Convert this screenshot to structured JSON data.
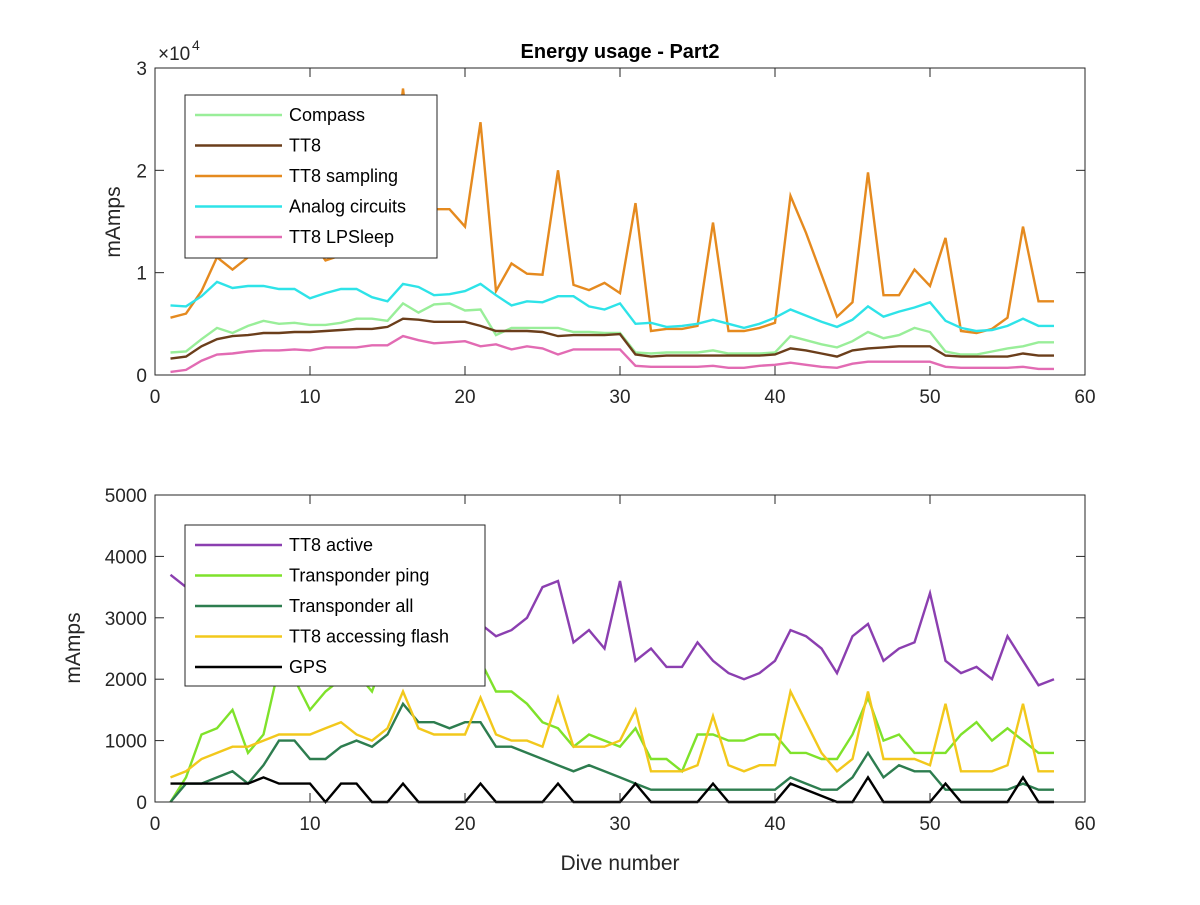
{
  "chart_data": [
    {
      "type": "line",
      "title": "Energy usage - Part2",
      "xlabel": "",
      "ylabel": "mAmps",
      "y_exponent_label": "×10",
      "y_exponent_power": "4",
      "y_scale_factor": 10000,
      "xlim": [
        0,
        60
      ],
      "ylim": [
        0,
        30000
      ],
      "xticks": [
        0,
        10,
        20,
        30,
        40,
        50,
        60
      ],
      "yticks": [
        0,
        10000,
        20000,
        30000
      ],
      "yticklabels": [
        "0",
        "1",
        "2",
        "3"
      ],
      "grid": false,
      "legend_position": "top-left",
      "x": [
        1,
        2,
        3,
        4,
        5,
        6,
        7,
        8,
        9,
        10,
        11,
        12,
        13,
        14,
        15,
        16,
        17,
        18,
        19,
        20,
        21,
        22,
        23,
        24,
        25,
        26,
        27,
        28,
        29,
        30,
        31,
        32,
        33,
        34,
        35,
        36,
        37,
        38,
        39,
        40,
        41,
        42,
        43,
        44,
        45,
        46,
        47,
        48,
        49,
        50,
        51,
        52,
        53,
        54,
        55,
        56,
        57,
        58
      ],
      "series": [
        {
          "name": "Compass",
          "color": "#99EE99",
          "values": [
            2200,
            2300,
            3500,
            4600,
            4100,
            4800,
            5300,
            5000,
            5100,
            4900,
            4900,
            5100,
            5500,
            5500,
            5300,
            7000,
            6100,
            6900,
            7000,
            6300,
            6400,
            3900,
            4600,
            4600,
            4600,
            4600,
            4200,
            4200,
            4100,
            4100,
            2200,
            2100,
            2200,
            2200,
            2200,
            2400,
            2100,
            2100,
            2100,
            2200,
            3800,
            3400,
            3000,
            2700,
            3300,
            4200,
            3600,
            3900,
            4600,
            4200,
            2300,
            2000,
            2000,
            2300,
            2600,
            2800,
            3200,
            3200
          ]
        },
        {
          "name": "TT8",
          "color": "#6B3E1B",
          "values": [
            1600,
            1800,
            2800,
            3500,
            3800,
            3900,
            4100,
            4100,
            4200,
            4200,
            4300,
            4400,
            4500,
            4500,
            4700,
            5500,
            5400,
            5200,
            5200,
            5200,
            4800,
            4300,
            4300,
            4300,
            4200,
            3800,
            3900,
            3900,
            3900,
            4000,
            2000,
            1800,
            1900,
            1900,
            1900,
            1900,
            1900,
            1900,
            1900,
            2000,
            2600,
            2400,
            2100,
            1800,
            2400,
            2600,
            2700,
            2800,
            2800,
            2800,
            1900,
            1800,
            1800,
            1800,
            1800,
            2100,
            1900,
            1900
          ]
        },
        {
          "name": "TT8 sampling",
          "color": "#E58A1F",
          "values": [
            5600,
            6000,
            8200,
            11500,
            10300,
            11500,
            12200,
            13500,
            14800,
            13300,
            11200,
            11700,
            12800,
            14000,
            14300,
            28000,
            14500,
            16200,
            16200,
            14500,
            24700,
            8200,
            10900,
            9900,
            9800,
            20000,
            8800,
            8300,
            9000,
            8000,
            16800,
            4300,
            4500,
            4500,
            4800,
            14900,
            4300,
            4300,
            4600,
            5100,
            17500,
            13900,
            9800,
            5700,
            7100,
            19800,
            7800,
            7800,
            10300,
            8700,
            13400,
            4300,
            4100,
            4500,
            5600,
            14500,
            7200,
            7200
          ]
        },
        {
          "name": "Analog circuits",
          "color": "#2EE3E8",
          "values": [
            6800,
            6700,
            7700,
            9100,
            8500,
            8700,
            8700,
            8400,
            8400,
            7500,
            8000,
            8400,
            8400,
            7600,
            7200,
            8900,
            8600,
            7800,
            7900,
            8200,
            8900,
            7800,
            6800,
            7200,
            7100,
            7700,
            7700,
            6700,
            6400,
            7000,
            5000,
            5100,
            4700,
            4800,
            5000,
            5400,
            5000,
            4600,
            5000,
            5600,
            6400,
            5800,
            5200,
            4700,
            5400,
            6700,
            5700,
            6200,
            6600,
            7100,
            5300,
            4600,
            4300,
            4400,
            4800,
            5500,
            4800,
            4800
          ]
        },
        {
          "name": "TT8 LPSleep",
          "color": "#E26BB3",
          "values": [
            300,
            500,
            1400,
            2000,
            2100,
            2300,
            2400,
            2400,
            2500,
            2400,
            2700,
            2700,
            2700,
            2900,
            2900,
            3800,
            3400,
            3100,
            3200,
            3300,
            2800,
            3000,
            2500,
            2800,
            2600,
            2000,
            2500,
            2500,
            2500,
            2500,
            900,
            800,
            800,
            800,
            800,
            900,
            700,
            700,
            900,
            1000,
            1200,
            1000,
            800,
            700,
            1100,
            1300,
            1300,
            1300,
            1300,
            1300,
            800,
            700,
            700,
            700,
            700,
            800,
            600,
            600
          ]
        }
      ]
    },
    {
      "type": "line",
      "title": "",
      "xlabel": "Dive number",
      "ylabel": "mAmps",
      "xlim": [
        0,
        60
      ],
      "ylim": [
        0,
        5000
      ],
      "xticks": [
        0,
        10,
        20,
        30,
        40,
        50,
        60
      ],
      "yticks": [
        0,
        1000,
        2000,
        3000,
        4000,
        5000
      ],
      "yticklabels": [
        "0",
        "1000",
        "2000",
        "3000",
        "4000",
        "5000"
      ],
      "grid": false,
      "legend_position": "top-left",
      "x": [
        1,
        2,
        3,
        4,
        5,
        6,
        7,
        8,
        9,
        10,
        11,
        12,
        13,
        14,
        15,
        16,
        17,
        18,
        19,
        20,
        21,
        22,
        23,
        24,
        25,
        26,
        27,
        28,
        29,
        30,
        31,
        32,
        33,
        34,
        35,
        36,
        37,
        38,
        39,
        40,
        41,
        42,
        43,
        44,
        45,
        46,
        47,
        48,
        49,
        50,
        51,
        52,
        53,
        54,
        55,
        56,
        57,
        58
      ],
      "series": [
        {
          "name": "TT8 active",
          "color": "#8B3FB0",
          "values": [
            3700,
            3500,
            3300,
            3100,
            3300,
            3200,
            3300,
            3300,
            3200,
            3200,
            3000,
            3100,
            3000,
            3000,
            2900,
            3000,
            2900,
            2900,
            2900,
            2900,
            2900,
            2700,
            2800,
            3000,
            3500,
            3600,
            2600,
            2800,
            2500,
            3600,
            2300,
            2500,
            2200,
            2200,
            2600,
            2300,
            2100,
            2000,
            2100,
            2300,
            2800,
            2700,
            2500,
            2100,
            2700,
            2900,
            2300,
            2500,
            2600,
            3400,
            2300,
            2100,
            2200,
            2000,
            2700,
            2300,
            1900,
            2000
          ]
        },
        {
          "name": "Transponder ping",
          "color": "#7FE22B",
          "values": [
            0,
            400,
            1100,
            1200,
            1500,
            800,
            1100,
            2200,
            2000,
            1500,
            1800,
            2000,
            2100,
            1800,
            2500,
            2700,
            2300,
            2300,
            2300,
            2300,
            2300,
            1800,
            1800,
            1600,
            1300,
            1200,
            900,
            1100,
            1000,
            900,
            1200,
            700,
            700,
            500,
            1100,
            1100,
            1000,
            1000,
            1100,
            1100,
            800,
            800,
            700,
            700,
            1100,
            1700,
            1000,
            1100,
            800,
            800,
            800,
            1100,
            1300,
            1000,
            1200,
            1000,
            800,
            800
          ]
        },
        {
          "name": "Transponder all",
          "color": "#2D7D4F",
          "values": [
            0,
            300,
            300,
            400,
            500,
            300,
            600,
            1000,
            1000,
            700,
            700,
            900,
            1000,
            900,
            1100,
            1600,
            1300,
            1300,
            1200,
            1300,
            1300,
            900,
            900,
            800,
            700,
            600,
            500,
            600,
            500,
            400,
            300,
            200,
            200,
            200,
            200,
            200,
            200,
            200,
            200,
            200,
            400,
            300,
            200,
            200,
            400,
            800,
            400,
            600,
            500,
            500,
            200,
            200,
            200,
            200,
            200,
            300,
            200,
            200
          ]
        },
        {
          "name": "TT8 accessing flash",
          "color": "#F2C81C",
          "values": [
            400,
            500,
            700,
            800,
            900,
            900,
            1000,
            1100,
            1100,
            1100,
            1200,
            1300,
            1100,
            1000,
            1200,
            1800,
            1200,
            1100,
            1100,
            1100,
            1700,
            1100,
            1000,
            1000,
            900,
            1700,
            900,
            900,
            900,
            1000,
            1500,
            500,
            500,
            500,
            600,
            1400,
            600,
            500,
            600,
            600,
            1800,
            1300,
            800,
            500,
            700,
            1800,
            700,
            700,
            700,
            600,
            1600,
            500,
            500,
            500,
            600,
            1600,
            500,
            500
          ]
        },
        {
          "name": "GPS",
          "color": "#000000",
          "values": [
            300,
            300,
            300,
            300,
            300,
            300,
            400,
            300,
            300,
            300,
            0,
            300,
            300,
            0,
            0,
            300,
            0,
            0,
            0,
            0,
            300,
            0,
            0,
            0,
            0,
            300,
            0,
            0,
            0,
            0,
            300,
            0,
            0,
            0,
            0,
            300,
            0,
            0,
            0,
            0,
            300,
            200,
            100,
            0,
            0,
            400,
            0,
            0,
            0,
            0,
            300,
            0,
            0,
            0,
            0,
            400,
            0,
            0
          ]
        }
      ]
    }
  ]
}
